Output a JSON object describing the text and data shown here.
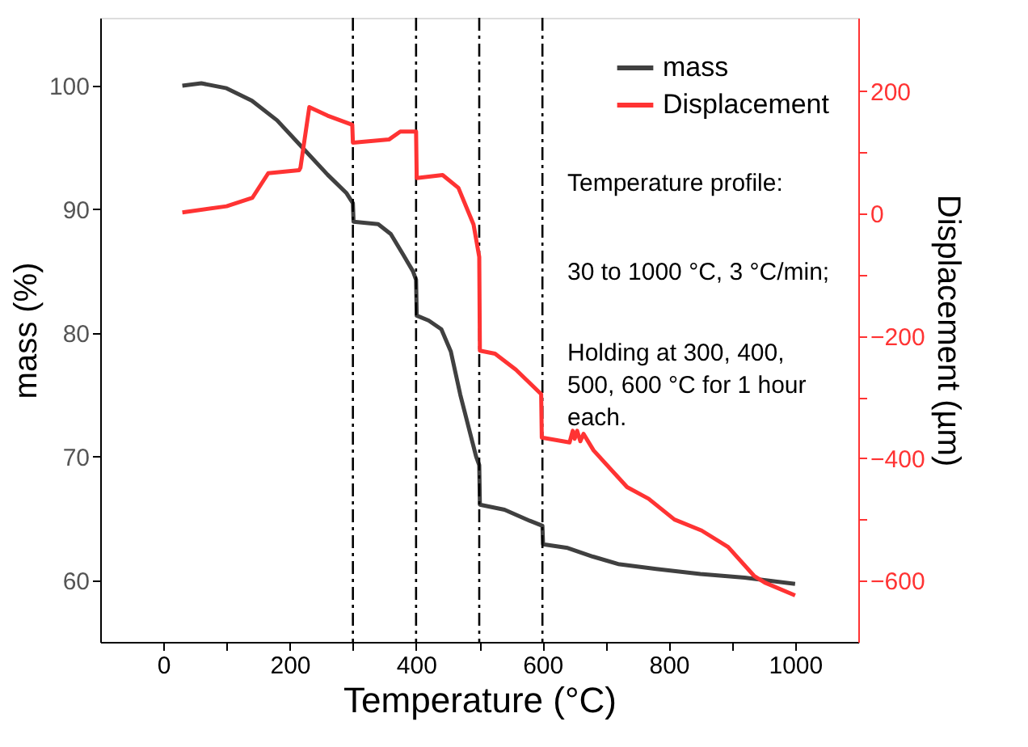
{
  "chart_data": {
    "type": "line",
    "xlabel": "Temperature (°C)",
    "ylabel": "mass (%)",
    "y2label": "Displacement (µm)",
    "xlim": [
      -100,
      1100
    ],
    "xticks": [
      0,
      {
        "value": 100,
        "label": null
      },
      200,
      {
        "value": 300,
        "label": null
      },
      400,
      {
        "value": 500,
        "label": null
      },
      600,
      {
        "value": 700,
        "label": null
      },
      800,
      {
        "value": 900,
        "label": null
      },
      1000
    ],
    "ylim": [
      55,
      105.5
    ],
    "yticks": [
      60,
      70,
      80,
      90,
      100
    ],
    "y2lim": [
      -700,
      320
    ],
    "y2ticks": [
      {
        "value": -600,
        "label": "−600"
      },
      {
        "value": -500,
        "label": null
      },
      {
        "value": -400,
        "label": "−400"
      },
      {
        "value": -300,
        "label": null
      },
      {
        "value": -200,
        "label": "−200"
      },
      {
        "value": -100,
        "label": null
      },
      0,
      {
        "value": 100,
        "label": null
      },
      200
    ],
    "grid": false,
    "legend": "top right",
    "line_style": "solid",
    "marker": "none",
    "series": [
      {
        "name": "mass",
        "color": "#404040",
        "x": [
          30,
          60,
          100,
          140,
          180,
          220,
          260,
          290,
          300,
          301,
          340,
          360,
          380,
          395,
          400,
          401,
          420,
          440,
          455,
          470,
          485,
          495,
          500,
          501,
          540,
          580,
          600,
          601,
          640,
          680,
          720,
          780,
          850,
          920,
          1000
        ],
        "values": [
          100,
          100.2,
          99.8,
          98.8,
          97.2,
          95.0,
          92.8,
          91.3,
          90.5,
          89.0,
          88.8,
          88.0,
          86.3,
          85.0,
          84.3,
          81.4,
          81.0,
          80.3,
          78.5,
          75.0,
          72.0,
          70.0,
          69.3,
          66.1,
          65.7,
          64.8,
          64.4,
          62.9,
          62.6,
          61.9,
          61.3,
          60.9,
          60.5,
          60.2,
          59.7
        ]
      },
      {
        "name": "Displacement",
        "color": "#ff3333",
        "axis": "y2",
        "x": [
          30,
          100,
          141,
          166,
          215,
          217,
          231,
          260,
          299,
          300,
          357,
          375,
          400,
          401,
          442,
          467,
          491,
          500,
          501,
          525,
          558,
          598,
          599,
          643,
          648,
          651,
          655,
          660,
          665,
          681,
          734,
          768,
          809,
          852,
          894,
          935,
          952,
          1000
        ],
        "values": [
          2,
          12,
          26,
          66,
          71,
          75,
          174,
          160,
          145,
          116,
          121,
          134,
          134,
          58,
          63,
          42,
          -18,
          -71,
          -224,
          -229,
          -255,
          -295,
          -366,
          -374,
          -355,
          -368,
          -355,
          -372,
          -360,
          -387,
          -447,
          -466,
          -500,
          -518,
          -545,
          -592,
          -603,
          -624
        ]
      }
    ],
    "ref_lines": [
      {
        "axis": "x",
        "value": 300,
        "color": "#000000",
        "line_style": "dashdot"
      },
      {
        "axis": "x",
        "value": 400,
        "color": "#000000",
        "line_style": "dashdot"
      },
      {
        "axis": "x",
        "value": 500,
        "color": "#000000",
        "line_style": "dashdot"
      },
      {
        "axis": "x",
        "value": 600,
        "color": "#000000",
        "line_style": "dashdot"
      }
    ],
    "annotations": [
      "Temperature profile:",
      "30 to 1000 °C, 3 °C/min;",
      "Holding at 300, 400,\n500, 600 °C for 1 hour\neach."
    ]
  }
}
